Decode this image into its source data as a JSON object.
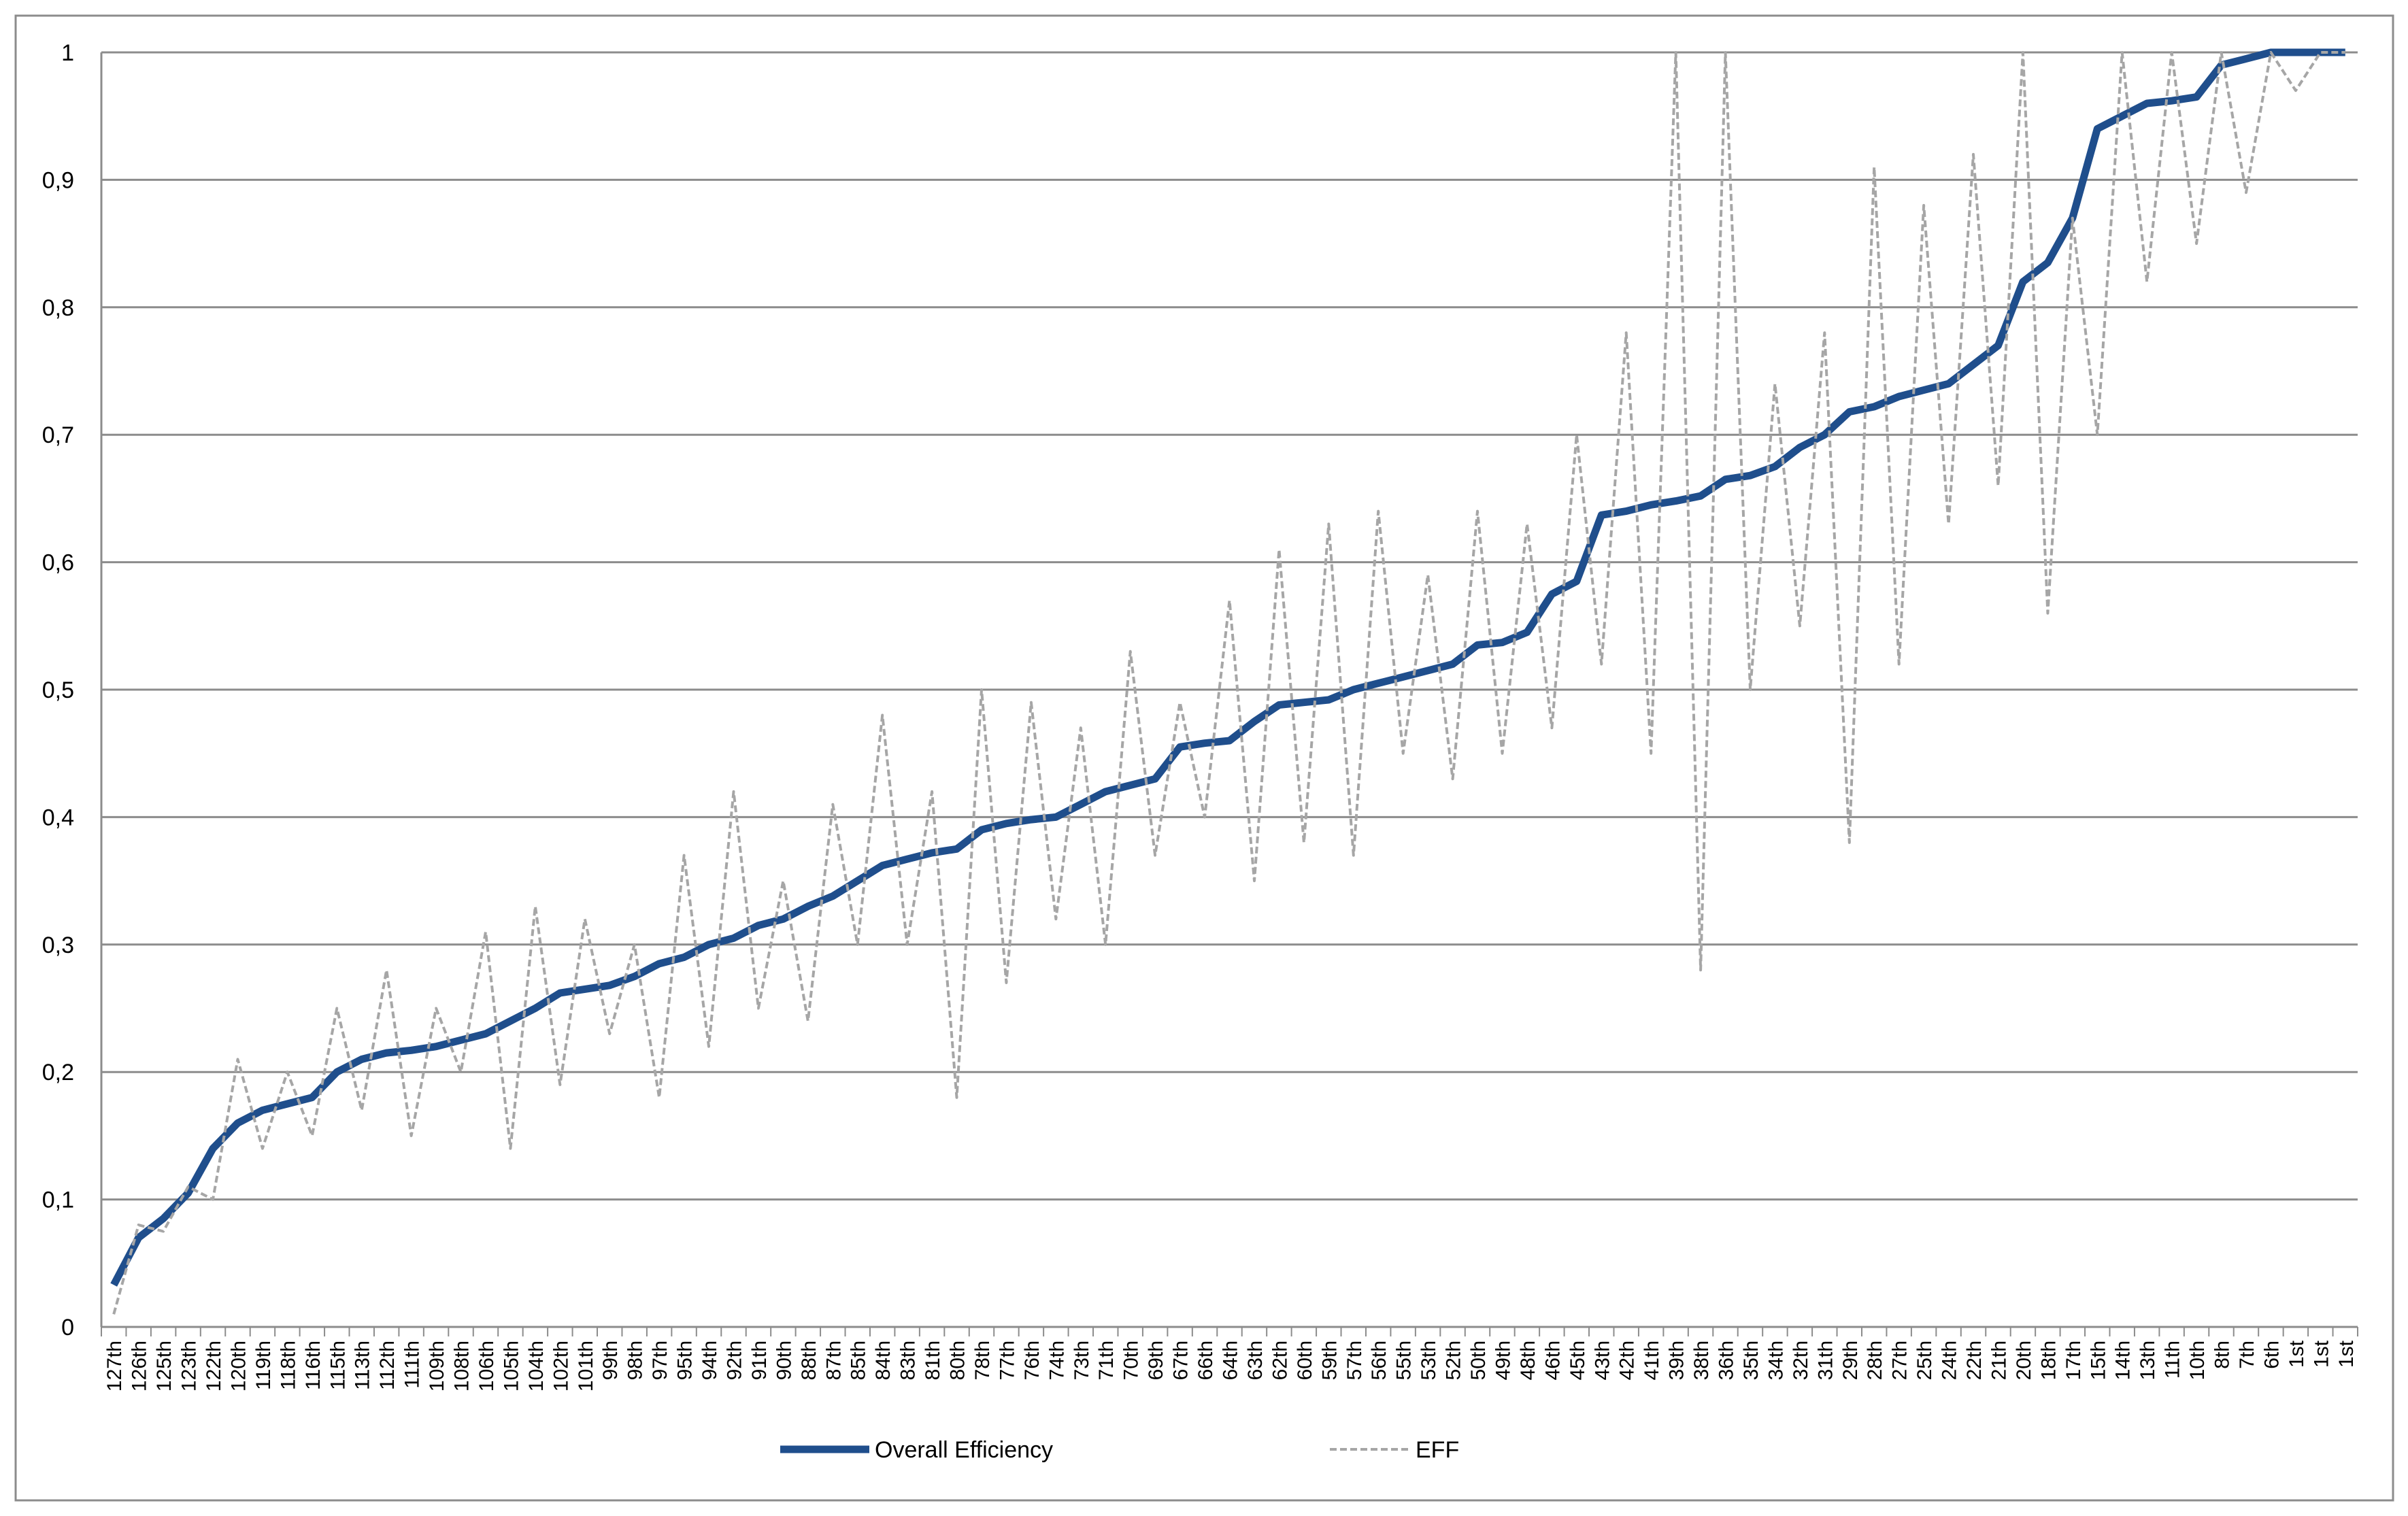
{
  "chart_data": {
    "type": "line",
    "categories": [
      "127th",
      "126th",
      "125th",
      "123th",
      "122th",
      "120th",
      "119th",
      "118th",
      "116th",
      "115th",
      "113th",
      "112th",
      "111th",
      "109th",
      "108th",
      "106th",
      "105th",
      "104th",
      "102th",
      "101th",
      "99th",
      "98th",
      "97th",
      "95th",
      "94th",
      "92th",
      "91th",
      "90th",
      "88th",
      "87th",
      "85th",
      "84th",
      "83th",
      "81th",
      "80th",
      "78th",
      "77th",
      "76th",
      "74th",
      "73th",
      "71th",
      "70th",
      "69th",
      "67th",
      "66th",
      "64th",
      "63th",
      "62th",
      "60th",
      "59th",
      "57th",
      "56th",
      "55th",
      "53th",
      "52th",
      "50th",
      "49th",
      "48th",
      "46th",
      "45th",
      "43th",
      "42th",
      "41th",
      "39th",
      "38th",
      "36th",
      "35th",
      "34th",
      "32th",
      "31th",
      "29th",
      "28th",
      "27th",
      "25th",
      "24th",
      "22th",
      "21th",
      "20th",
      "18th",
      "17th",
      "15th",
      "14th",
      "13th",
      "11th",
      "10th",
      "8th",
      "7th",
      "6th",
      "1st",
      "1st",
      "1st"
    ],
    "series": [
      {
        "name": "Overall Efficiency",
        "color": "#1f4e8c",
        "values": [
          0.033,
          0.07,
          0.085,
          0.105,
          0.14,
          0.16,
          0.17,
          0.175,
          0.18,
          0.2,
          0.21,
          0.215,
          0.217,
          0.22,
          0.225,
          0.23,
          0.24,
          0.25,
          0.262,
          0.265,
          0.268,
          0.275,
          0.285,
          0.29,
          0.3,
          0.305,
          0.315,
          0.32,
          0.33,
          0.338,
          0.35,
          0.362,
          0.367,
          0.372,
          0.375,
          0.39,
          0.395,
          0.398,
          0.4,
          0.41,
          0.42,
          0.425,
          0.43,
          0.455,
          0.458,
          0.46,
          0.475,
          0.488,
          0.49,
          0.492,
          0.5,
          0.505,
          0.51,
          0.515,
          0.52,
          0.535,
          0.537,
          0.545,
          0.575,
          0.585,
          0.637,
          0.64,
          0.645,
          0.648,
          0.652,
          0.665,
          0.668,
          0.675,
          0.69,
          0.7,
          0.718,
          0.722,
          0.73,
          0.735,
          0.74,
          0.755,
          0.77,
          0.82,
          0.835,
          0.87,
          0.94,
          0.95,
          0.96,
          0.962,
          0.965,
          0.99,
          0.995,
          1,
          1,
          1,
          1
        ]
      },
      {
        "name": "EFF",
        "color": "#a6a6a6",
        "dashed": true,
        "values": [
          0.01,
          0.08,
          0.075,
          0.11,
          0.1,
          0.21,
          0.14,
          0.2,
          0.15,
          0.25,
          0.17,
          0.28,
          0.15,
          0.25,
          0.2,
          0.31,
          0.14,
          0.33,
          0.19,
          0.32,
          0.23,
          0.3,
          0.18,
          0.37,
          0.22,
          0.42,
          0.25,
          0.35,
          0.24,
          0.41,
          0.3,
          0.48,
          0.3,
          0.42,
          0.18,
          0.5,
          0.27,
          0.49,
          0.32,
          0.47,
          0.3,
          0.53,
          0.37,
          0.49,
          0.4,
          0.57,
          0.35,
          0.61,
          0.38,
          0.63,
          0.37,
          0.64,
          0.45,
          0.59,
          0.43,
          0.64,
          0.45,
          0.63,
          0.47,
          0.7,
          0.52,
          0.78,
          0.45,
          1,
          0.28,
          1,
          0.5,
          0.74,
          0.55,
          0.78,
          0.38,
          0.91,
          0.52,
          0.88,
          0.63,
          0.92,
          0.66,
          1,
          0.56,
          0.87,
          0.7,
          1,
          0.82,
          1,
          0.85,
          1,
          0.89,
          1,
          0.97,
          1,
          1
        ]
      }
    ],
    "ylim": [
      0,
      1
    ],
    "yticks": [
      0,
      {
        "value": 0.1,
        "label": "0,1"
      },
      {
        "value": 0.2,
        "label": "0,2"
      },
      {
        "value": 0.3,
        "label": "0,3"
      },
      {
        "value": 0.4,
        "label": "0,4"
      },
      {
        "value": 0.5,
        "label": "0,5"
      },
      {
        "value": 0.6,
        "label": "0,6"
      },
      {
        "value": 0.7,
        "label": "0,7"
      },
      {
        "value": 0.8,
        "label": "0,8"
      },
      {
        "value": 0.9,
        "label": "0,9"
      },
      1
    ],
    "grid": true,
    "legend": "bottom"
  }
}
